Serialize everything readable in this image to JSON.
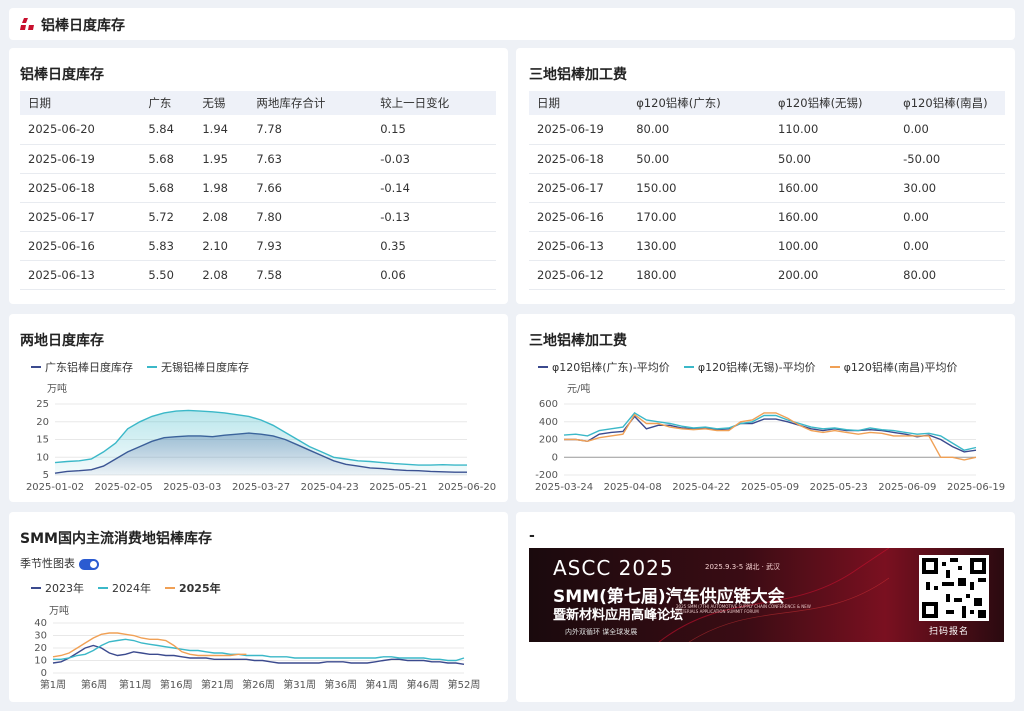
{
  "header": {
    "title": "铝棒日度库存"
  },
  "inventory_table": {
    "title": "铝棒日度库存",
    "columns": [
      "日期",
      "广东",
      "无锡",
      "两地库存合计",
      "较上一日变化"
    ],
    "rows": [
      [
        "2025-06-20",
        "5.84",
        "1.94",
        "7.78",
        "0.15"
      ],
      [
        "2025-06-19",
        "5.68",
        "1.95",
        "7.63",
        "-0.03"
      ],
      [
        "2025-06-18",
        "5.68",
        "1.98",
        "7.66",
        "-0.14"
      ],
      [
        "2025-06-17",
        "5.72",
        "2.08",
        "7.80",
        "-0.13"
      ],
      [
        "2025-06-16",
        "5.83",
        "2.10",
        "7.93",
        "0.35"
      ],
      [
        "2025-06-13",
        "5.50",
        "2.08",
        "7.58",
        "0.06"
      ]
    ]
  },
  "fee_table": {
    "title": "三地铝棒加工费",
    "columns": [
      "日期",
      "φ120铝棒(广东)",
      "φ120铝棒(无锡)",
      "φ120铝棒(南昌)"
    ],
    "rows": [
      [
        "2025-06-19",
        "80.00",
        "110.00",
        "0.00"
      ],
      [
        "2025-06-18",
        "50.00",
        "50.00",
        "-50.00"
      ],
      [
        "2025-06-17",
        "150.00",
        "160.00",
        "30.00"
      ],
      [
        "2025-06-16",
        "170.00",
        "160.00",
        "0.00"
      ],
      [
        "2025-06-13",
        "130.00",
        "100.00",
        "0.00"
      ],
      [
        "2025-06-12",
        "180.00",
        "200.00",
        "80.00"
      ]
    ]
  },
  "chart_data": [
    {
      "type": "area",
      "title": "两地日度库存",
      "unit": "万吨",
      "ylim": [
        5,
        25
      ],
      "yticks": [
        5,
        10,
        15,
        20,
        25
      ],
      "xtick_labels": [
        "2025-01-02",
        "2025-02-05",
        "2025-03-03",
        "2025-03-27",
        "2025-04-23",
        "2025-05-21",
        "2025-06-20"
      ],
      "series": [
        {
          "name": "广东铝棒日度库存",
          "color": "#3b4a8e",
          "values": [
            5.5,
            6.0,
            6.2,
            6.5,
            7.5,
            9.5,
            11.5,
            13.0,
            14.5,
            15.5,
            15.8,
            16.0,
            16.0,
            15.8,
            16.2,
            16.5,
            16.8,
            16.5,
            16.0,
            15.0,
            13.5,
            12.0,
            10.5,
            9.0,
            8.0,
            7.5,
            7.0,
            6.8,
            6.5,
            6.3,
            6.2,
            6.0,
            5.9,
            5.8,
            5.8
          ]
        },
        {
          "name": "无锡铝棒日度库存",
          "color": "#3bb8c8",
          "values": [
            8.5,
            8.8,
            9.0,
            9.5,
            11.5,
            14.0,
            18.0,
            20.0,
            21.5,
            22.5,
            23.0,
            23.2,
            23.0,
            22.8,
            22.5,
            22.0,
            21.5,
            20.5,
            19.0,
            17.0,
            15.0,
            13.0,
            11.5,
            10.0,
            9.5,
            9.0,
            8.8,
            8.5,
            8.2,
            8.0,
            7.8,
            7.8,
            7.9,
            7.8,
            7.8
          ]
        }
      ]
    },
    {
      "type": "line",
      "title": "三地铝棒加工费",
      "unit": "元/吨",
      "ylim": [
        -200,
        600
      ],
      "yticks": [
        -200,
        0,
        200,
        400,
        600
      ],
      "xtick_labels": [
        "2025-03-24",
        "2025-04-08",
        "2025-04-22",
        "2025-05-09",
        "2025-05-23",
        "2025-06-09",
        "2025-06-19"
      ],
      "series": [
        {
          "name": "φ120铝棒(广东)-平均价",
          "color": "#3b4a8e",
          "values": [
            200,
            200,
            180,
            260,
            280,
            290,
            460,
            320,
            360,
            360,
            330,
            320,
            330,
            310,
            320,
            380,
            380,
            430,
            430,
            400,
            360,
            320,
            300,
            320,
            300,
            300,
            310,
            300,
            280,
            260,
            230,
            250,
            200,
            120,
            60,
            80
          ]
        },
        {
          "name": "φ120铝棒(无锡)-平均价",
          "color": "#3bb8c8",
          "values": [
            250,
            260,
            240,
            300,
            320,
            340,
            500,
            420,
            400,
            380,
            350,
            330,
            340,
            320,
            330,
            380,
            400,
            470,
            470,
            420,
            380,
            340,
            320,
            330,
            310,
            300,
            330,
            310,
            300,
            280,
            260,
            270,
            240,
            160,
            80,
            110
          ]
        },
        {
          "name": "φ120铝棒(南昌)平均价",
          "color": "#f0a055",
          "values": [
            200,
            200,
            180,
            220,
            240,
            260,
            480,
            380,
            380,
            340,
            320,
            310,
            320,
            300,
            300,
            400,
            420,
            500,
            500,
            440,
            360,
            300,
            280,
            300,
            280,
            260,
            280,
            270,
            240,
            240,
            240,
            240,
            0,
            0,
            -30,
            0
          ]
        }
      ]
    },
    {
      "type": "line",
      "title": "SMM国内主流消费地铝棒库存",
      "unit": "万吨",
      "ylim": [
        0,
        40
      ],
      "yticks": [
        0,
        10,
        20,
        30,
        40
      ],
      "xtick_labels": [
        "第1周",
        "第6周",
        "第11周",
        "第16周",
        "第21周",
        "第26周",
        "第31周",
        "第36周",
        "第41周",
        "第46周",
        "第52周"
      ],
      "series": [
        {
          "name": "2023年",
          "color": "#3b4a8e",
          "values": [
            8,
            9,
            12,
            16,
            20,
            22,
            20,
            16,
            14,
            15,
            17,
            16,
            15,
            15,
            14,
            14,
            13,
            12,
            12,
            12,
            11,
            11,
            11,
            11,
            11,
            10,
            10,
            9,
            8,
            8,
            8,
            8,
            8,
            8,
            9,
            9,
            9,
            8,
            8,
            8,
            9,
            10,
            11,
            11,
            10,
            10,
            10,
            9,
            9,
            8,
            8,
            7
          ]
        },
        {
          "name": "2024年",
          "color": "#3bb8c8",
          "values": [
            11,
            11,
            12,
            14,
            15,
            18,
            22,
            25,
            26,
            27,
            26,
            24,
            23,
            22,
            21,
            20,
            19,
            18,
            18,
            17,
            16,
            16,
            15,
            15,
            14,
            14,
            14,
            13,
            13,
            13,
            12,
            12,
            12,
            12,
            12,
            12,
            12,
            12,
            12,
            12,
            12,
            13,
            13,
            12,
            12,
            12,
            12,
            11,
            11,
            10,
            10,
            12
          ]
        },
        {
          "name": "2025年",
          "color": "#f0a055",
          "values": [
            13,
            14,
            16,
            20,
            24,
            28,
            31,
            32,
            32,
            31,
            30,
            28,
            27,
            27,
            26,
            22,
            17,
            15,
            14,
            14,
            14,
            14,
            14,
            15,
            15
          ]
        }
      ]
    }
  ],
  "cards": {
    "dual_chart_title": "两地日度库存",
    "fee_chart_title": "三地铝棒加工费",
    "seasonal_title": "SMM国内主流消费地铝棒库存",
    "seasonal_toggle_label": "季节性图表",
    "ad_card_title": "-"
  },
  "ad": {
    "brand": "ASCC 2025",
    "date_place": "2025.9.3-5   湖北 · 武汉",
    "headline": "SMM(第七届)汽车供应链大会",
    "subline": "暨新材料应用高峰论坛",
    "english": "2025 SMM (7TH) AUTOMOTIVE SUPPLY CHAIN CONFERENCE & NEW MATERIALS APPLICATION SUMMIT FORUM",
    "slogan": "内外双循环   谋全球发展",
    "qr_label": "扫码报名"
  }
}
